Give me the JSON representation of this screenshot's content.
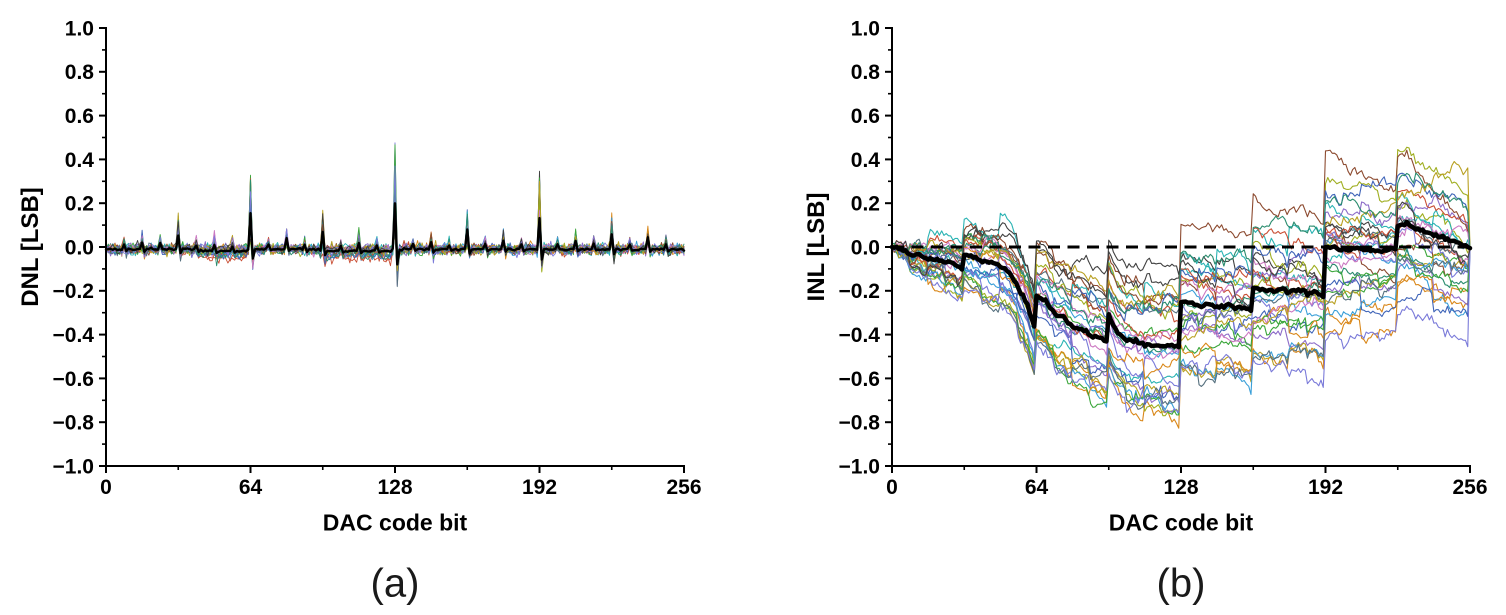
{
  "figure": {
    "background": "#ffffff",
    "axis_color": "#000000",
    "mean_line_color": "#000000",
    "zero_line_color": "#000000"
  },
  "chart_data": [
    {
      "id": "a",
      "type": "line",
      "title": "",
      "xlabel": "DAC code bit",
      "ylabel": "DNL [LSB]",
      "caption": "(a)",
      "xlim": [
        0,
        256
      ],
      "ylim": [
        -1.0,
        1.0
      ],
      "xtick_vals": [
        0,
        64,
        128,
        192,
        256
      ],
      "xtick_labels": [
        "0",
        "64",
        "128",
        "192",
        "256"
      ],
      "xminor_vals": [
        32,
        96,
        160,
        224
      ],
      "ytick_vals": [
        1.0,
        0.8,
        0.6,
        0.4,
        0.2,
        0.0,
        -0.2,
        -0.4,
        -0.6,
        -0.8,
        -1.0
      ],
      "ytick_labels": [
        "1.0",
        "0.8",
        "0.6",
        "0.4",
        "0.2",
        "0.0",
        "−0.2",
        "−0.4",
        "−0.6",
        "−0.8",
        "−1.0"
      ],
      "yminor_step": 0.1,
      "grid": false,
      "legend": "none",
      "n_traces": 30,
      "seed": 7,
      "baseline": -0.01,
      "noise_sd": 0.012,
      "spike_heights": {
        "64": 0.34,
        "128": 0.51,
        "192": 0.38,
        "bit32": 0.17,
        "bit16": 0.085,
        "bit8": 0.05
      },
      "neg_spike_128": -0.17,
      "dip_bands": [
        [
          40,
          62
        ],
        [
          95,
          126
        ]
      ],
      "dip_depth": 0.03,
      "palette": [
        "#3a9fd8",
        "#d98719",
        "#2ab3b3",
        "#9fae20",
        "#3aa63a",
        "#8c6bc8",
        "#c94f35",
        "#8c4a2f",
        "#cc79c2",
        "#3f64b8",
        "#56707e",
        "#b8a021",
        "#2a8c6e",
        "#7a7ad9",
        "#404040"
      ]
    },
    {
      "id": "b",
      "type": "line",
      "title": "",
      "xlabel": "DAC code bit",
      "ylabel": "INL [LSB]",
      "caption": "(b)",
      "xlim": [
        0,
        256
      ],
      "ylim": [
        -1.0,
        1.0
      ],
      "xtick_vals": [
        0,
        64,
        128,
        192,
        256
      ],
      "xtick_labels": [
        "0",
        "64",
        "128",
        "192",
        "256"
      ],
      "xminor_vals": [
        32,
        96,
        160,
        224
      ],
      "ytick_vals": [
        1.0,
        0.8,
        0.6,
        0.4,
        0.2,
        0.0,
        -0.2,
        -0.4,
        -0.6,
        -0.8,
        -1.0
      ],
      "ytick_labels": [
        "1.0",
        "0.8",
        "0.6",
        "0.4",
        "0.2",
        "0.0",
        "−0.2",
        "−0.4",
        "−0.6",
        "−0.8",
        "−1.0"
      ],
      "yminor_step": 0.1,
      "grid": false,
      "legend": "none",
      "zero_line_dashed": true,
      "n_traces": 30,
      "seed": 42,
      "mean_points": [
        [
          0,
          0
        ],
        [
          6,
          -0.02
        ],
        [
          12,
          -0.04
        ],
        [
          20,
          -0.06
        ],
        [
          26,
          -0.075
        ],
        [
          31,
          -0.095
        ],
        [
          32,
          -0.03
        ],
        [
          36,
          -0.05
        ],
        [
          40,
          -0.06
        ],
        [
          44,
          -0.07
        ],
        [
          48,
          -0.085
        ],
        [
          52,
          -0.12
        ],
        [
          56,
          -0.18
        ],
        [
          60,
          -0.27
        ],
        [
          63,
          -0.36
        ],
        [
          64,
          -0.215
        ],
        [
          68,
          -0.25
        ],
        [
          72,
          -0.3
        ],
        [
          78,
          -0.345
        ],
        [
          84,
          -0.385
        ],
        [
          90,
          -0.41
        ],
        [
          95,
          -0.43
        ],
        [
          96,
          -0.3
        ],
        [
          98,
          -0.36
        ],
        [
          100,
          -0.4
        ],
        [
          104,
          -0.42
        ],
        [
          110,
          -0.44
        ],
        [
          116,
          -0.45
        ],
        [
          122,
          -0.45
        ],
        [
          127,
          -0.455
        ],
        [
          128,
          -0.245
        ],
        [
          132,
          -0.26
        ],
        [
          138,
          -0.265
        ],
        [
          144,
          -0.27
        ],
        [
          150,
          -0.27
        ],
        [
          155,
          -0.28
        ],
        [
          159,
          -0.285
        ],
        [
          160,
          -0.185
        ],
        [
          166,
          -0.2
        ],
        [
          172,
          -0.195
        ],
        [
          178,
          -0.2
        ],
        [
          184,
          -0.205
        ],
        [
          191,
          -0.215
        ],
        [
          192,
          0.005
        ],
        [
          197,
          -0.01
        ],
        [
          202,
          -0.01
        ],
        [
          208,
          -0.005
        ],
        [
          213,
          -0.02
        ],
        [
          218,
          -0.015
        ],
        [
          223,
          -0.008
        ],
        [
          224,
          0.105
        ],
        [
          228,
          0.105
        ],
        [
          232,
          0.09
        ],
        [
          236,
          0.07
        ],
        [
          240,
          0.06
        ],
        [
          244,
          0.042
        ],
        [
          248,
          0.03
        ],
        [
          252,
          0.015
        ],
        [
          256,
          -0.005
        ]
      ],
      "dev_model": {
        "bit_sd": {
          "128": 0.13,
          "64": 0.11,
          "32": 0.055,
          "16": 0.035,
          "8": 0.025
        },
        "bow_sd": 0.14,
        "walk_sd": 0.009,
        "ramp_sd": 0.02,
        "noise_sd": 0.006
      },
      "palette": [
        "#3a9fd8",
        "#d98719",
        "#2ab3b3",
        "#9fae20",
        "#3aa63a",
        "#8c6bc8",
        "#c94f35",
        "#8c4a2f",
        "#cc79c2",
        "#3f64b8",
        "#56707e",
        "#b8a021",
        "#2a8c6e",
        "#7a7ad9",
        "#404040"
      ]
    }
  ]
}
